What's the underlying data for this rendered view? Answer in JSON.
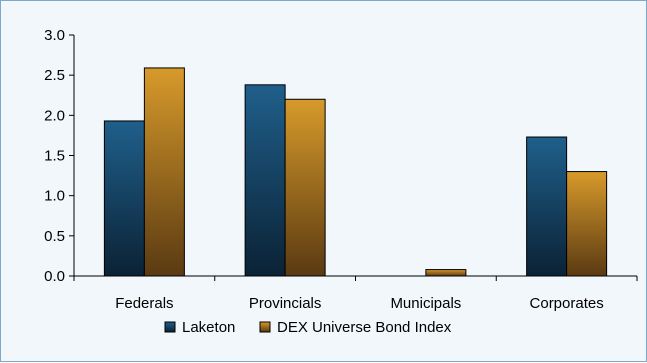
{
  "chart_data": {
    "type": "bar",
    "title": "",
    "xlabel": "",
    "ylabel": "",
    "categories": [
      "Federals",
      "Provincials",
      "Municipals",
      "Corporates"
    ],
    "series": [
      {
        "name": "Laketon",
        "values": [
          1.93,
          2.38,
          0.0,
          1.73
        ],
        "color": "#1f5f8b"
      },
      {
        "name": "DEX Universe Bond Index",
        "values": [
          2.59,
          2.2,
          0.08,
          1.3
        ],
        "color": "#d79a2b"
      }
    ],
    "ylim": [
      0,
      3.0
    ],
    "yticks": [
      "0.0",
      "0.5",
      "1.0",
      "1.5",
      "2.0",
      "2.5",
      "3.0"
    ],
    "grid": false,
    "legend_position": "bottom"
  }
}
